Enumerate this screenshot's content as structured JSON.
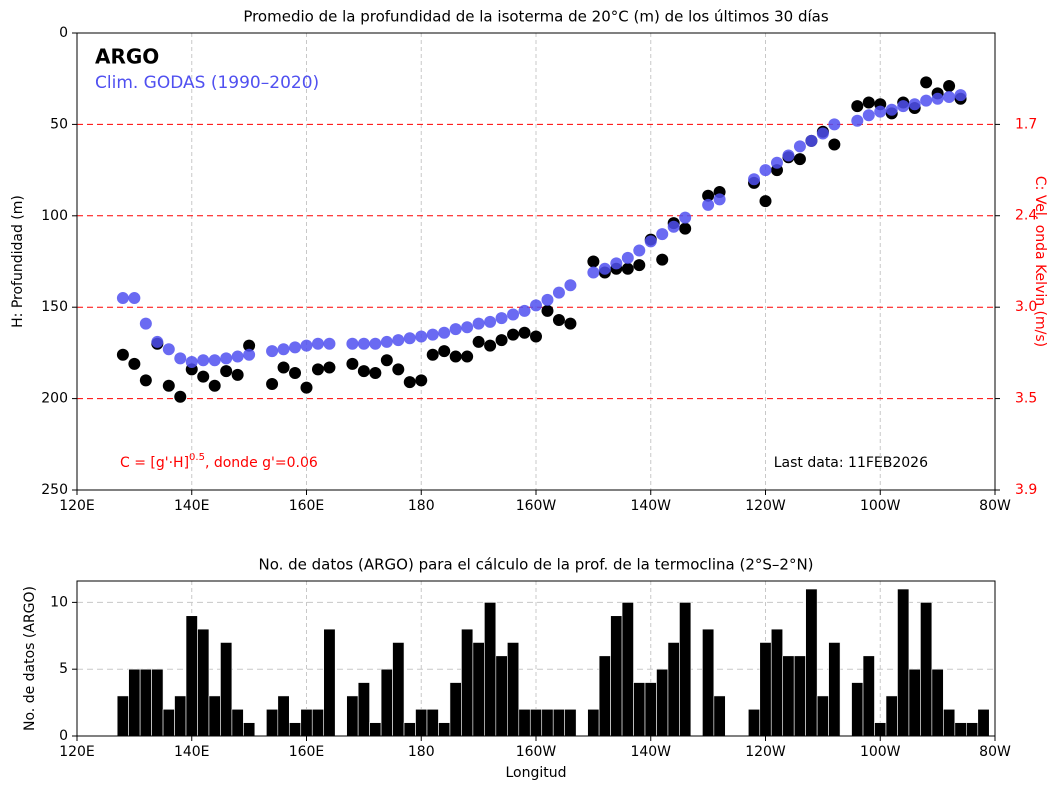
{
  "chart_data": [
    {
      "type": "scatter",
      "title": "Promedio de la profundidad de la isoterma de 20°C (m) de los últimos 30 días",
      "ylabel": "H: Profundidad (m)",
      "y2label": "C: Vel. onda Kelvin (m/s)",
      "annotations": {
        "formula": {
          "text": "C = [g'·H]",
          "superscript": "0.5",
          "rest": ", donde g'=0.06"
        },
        "last_data": "Last data: 11FEB2026"
      },
      "x": [
        128,
        130,
        132,
        134,
        136,
        138,
        140,
        142,
        144,
        146,
        148,
        150,
        154,
        156,
        158,
        160,
        162,
        164,
        168,
        170,
        172,
        174,
        176,
        178,
        180,
        182,
        184,
        186,
        188,
        190,
        192,
        194,
        196,
        198,
        200,
        202,
        204,
        206,
        210,
        212,
        214,
        216,
        218,
        220,
        222,
        224,
        226,
        230,
        232,
        238,
        240,
        242,
        244,
        246,
        248,
        250,
        252,
        256,
        258,
        260,
        262,
        264,
        266,
        268,
        270,
        272,
        274
      ],
      "series": [
        {
          "name": "ARGO",
          "color": "#000000",
          "values": [
            176,
            181,
            190,
            170,
            193,
            199,
            184,
            188,
            193,
            185,
            187,
            171,
            192,
            183,
            186,
            194,
            184,
            183,
            181,
            185,
            186,
            179,
            184,
            191,
            190,
            176,
            174,
            177,
            177,
            169,
            171,
            168,
            165,
            164,
            166,
            152,
            157,
            159,
            125,
            131,
            129,
            129,
            127,
            113,
            124,
            104,
            107,
            89,
            87,
            82,
            92,
            75,
            68,
            69,
            59,
            54,
            61,
            40,
            38,
            39,
            44,
            38,
            41,
            27,
            33,
            29,
            36
          ]
        },
        {
          "name": "Clim. GODAS (1990–2020)",
          "color": "#5050f0",
          "values": [
            145,
            145,
            159,
            169,
            173,
            178,
            180,
            179,
            179,
            178,
            177,
            176,
            174,
            173,
            172,
            171,
            170,
            170,
            170,
            170,
            170,
            169,
            168,
            167,
            166,
            165,
            164,
            162,
            161,
            159,
            158,
            156,
            154,
            152,
            149,
            146,
            142,
            138,
            131,
            129,
            126,
            123,
            119,
            114,
            110,
            106,
            101,
            94,
            91,
            80,
            75,
            71,
            67,
            62,
            59,
            55,
            50,
            48,
            45,
            43,
            42,
            40,
            39,
            37,
            36,
            35,
            34
          ]
        }
      ],
      "xlim": [
        120,
        280
      ],
      "xticks": [
        {
          "value": 120,
          "label": "120E"
        },
        {
          "value": 140,
          "label": "140E"
        },
        {
          "value": 160,
          "label": "160E"
        },
        180,
        {
          "value": 200,
          "label": "160W"
        },
        {
          "value": 220,
          "label": "140W"
        },
        {
          "value": 240,
          "label": "120W"
        },
        {
          "value": 260,
          "label": "100W"
        },
        {
          "value": 280,
          "label": "80W"
        }
      ],
      "ylim": [
        0,
        250
      ],
      "yticks": [
        0,
        50,
        100,
        150,
        200,
        250
      ],
      "y_inverted": true,
      "y2lim": [
        0,
        3.873
      ],
      "y2scale": "square",
      "y2ticks": [
        {
          "value": 1.732,
          "label": "1.7"
        },
        {
          "value": 2.449,
          "label": "2.4"
        },
        {
          "value": 3.0,
          "label": "3.0"
        },
        {
          "value": 3.464,
          "label": "3.5"
        },
        {
          "value": 3.873,
          "label": "3.9"
        }
      ],
      "y2color": "#ff0000",
      "grid": true,
      "ygrid_color": "#ff0000",
      "legend": "upper left"
    },
    {
      "type": "histogram",
      "title": "No. de datos (ARGO) para el cálculo de la prof. de la termoclina (2°S–2°N)",
      "xlabel": "Longitud",
      "ylabel": "No. de datos (ARGO)",
      "color": "#000000",
      "bins": [
        127,
        129,
        131,
        133,
        135,
        137,
        139,
        141,
        143,
        145,
        147,
        149,
        151,
        153,
        155,
        157,
        159,
        161,
        163,
        165,
        167,
        169,
        171,
        173,
        175,
        177,
        179,
        181,
        183,
        185,
        187,
        189,
        191,
        193,
        195,
        197,
        199,
        201,
        203,
        205,
        207,
        209,
        211,
        213,
        215,
        217,
        219,
        221,
        223,
        225,
        227,
        229,
        231,
        233,
        235,
        237,
        239,
        241,
        243,
        245,
        247,
        249,
        251,
        253,
        255,
        257,
        259,
        261,
        263,
        265,
        267,
        269,
        271,
        273,
        275,
        277,
        279
      ],
      "values": [
        3,
        5,
        5,
        5,
        2,
        3,
        9,
        8,
        3,
        7,
        2,
        1,
        0,
        2,
        3,
        1,
        2,
        2,
        8,
        0,
        3,
        4,
        1,
        5,
        7,
        1,
        2,
        2,
        1,
        4,
        8,
        7,
        10,
        6,
        7,
        2,
        2,
        2,
        2,
        2,
        0,
        2,
        6,
        9,
        10,
        4,
        4,
        5,
        7,
        10,
        0,
        8,
        3,
        0,
        0,
        2,
        7,
        8,
        6,
        6,
        11,
        3,
        7,
        0,
        4,
        6,
        1,
        3,
        11,
        5,
        10,
        5,
        2,
        1,
        1,
        2
      ],
      "xlim": [
        120,
        280
      ],
      "xticks": [
        {
          "value": 120,
          "label": "120E"
        },
        {
          "value": 140,
          "label": "140E"
        },
        {
          "value": 160,
          "label": "160E"
        },
        180,
        {
          "value": 200,
          "label": "160W"
        },
        {
          "value": 220,
          "label": "140W"
        },
        {
          "value": 240,
          "label": "120W"
        },
        {
          "value": 260,
          "label": "100W"
        },
        {
          "value": 280,
          "label": "80W"
        }
      ],
      "ylim": [
        0,
        11.6
      ],
      "yticks": [
        0,
        5,
        10
      ],
      "grid": true
    }
  ]
}
